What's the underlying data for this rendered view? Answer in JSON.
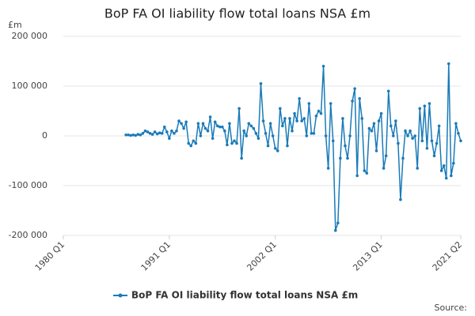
{
  "chart_data": {
    "type": "line",
    "title": "BoP FA OI liability flow total loans NSA £m",
    "y_label": "£m",
    "source": "Source:",
    "categories": [
      "1980 Q1",
      null,
      null,
      null,
      null,
      null,
      null,
      null,
      null,
      null,
      null,
      null,
      null,
      null,
      null,
      null,
      null,
      null,
      null,
      null,
      null,
      null,
      null,
      null,
      null,
      null,
      null,
      null,
      null,
      null,
      null,
      null,
      null,
      null,
      null,
      null,
      null,
      null,
      null,
      null,
      null,
      null,
      null,
      null,
      "1991 Q1",
      null,
      null,
      null,
      null,
      null,
      null,
      null,
      null,
      null,
      null,
      null,
      null,
      null,
      null,
      null,
      null,
      null,
      null,
      null,
      null,
      null,
      null,
      null,
      null,
      null,
      null,
      null,
      null,
      null,
      null,
      null,
      null,
      null,
      null,
      null,
      null,
      null,
      null,
      null,
      null,
      null,
      null,
      null,
      "2002 Q1",
      null,
      null,
      null,
      null,
      null,
      null,
      null,
      null,
      null,
      null,
      null,
      null,
      null,
      null,
      null,
      null,
      null,
      null,
      null,
      null,
      null,
      null,
      null,
      null,
      null,
      null,
      null,
      null,
      null,
      null,
      null,
      null,
      null,
      null,
      null,
      null,
      null,
      null,
      null,
      null,
      null,
      null,
      null,
      "2013 Q1",
      null,
      null,
      null,
      null,
      null,
      null,
      null,
      null,
      null,
      null,
      null,
      null,
      null,
      null,
      null,
      null,
      null,
      null,
      null,
      null,
      null,
      null,
      null,
      null,
      null,
      null,
      null,
      null,
      null,
      null,
      null,
      null,
      "2021 Q2"
    ],
    "series": [
      {
        "name": "BoP FA OI liability flow total loans NSA £m",
        "color": "#1a7bb8",
        "values": [
          null,
          null,
          null,
          null,
          null,
          null,
          null,
          null,
          null,
          null,
          null,
          null,
          null,
          null,
          null,
          null,
          null,
          null,
          null,
          null,
          null,
          null,
          null,
          null,
          null,
          null,
          2000,
          2000,
          1000,
          2000,
          1000,
          3000,
          2000,
          5000,
          10000,
          8000,
          5000,
          3000,
          8000,
          4000,
          6000,
          5000,
          18000,
          8000,
          -5000,
          10000,
          5000,
          10000,
          30000,
          25000,
          15000,
          28000,
          -15000,
          -20000,
          -10000,
          -15000,
          25000,
          0,
          25000,
          15000,
          10000,
          38000,
          -5000,
          28000,
          20000,
          18000,
          18000,
          10000,
          -18000,
          25000,
          -15000,
          -10000,
          -15000,
          55000,
          -45000,
          10000,
          0,
          25000,
          20000,
          15000,
          5000,
          -5000,
          105000,
          30000,
          5000,
          -20000,
          25000,
          0,
          -25000,
          -30000,
          55000,
          20000,
          35000,
          -20000,
          35000,
          10000,
          45000,
          30000,
          75000,
          30000,
          35000,
          0,
          65000,
          5000,
          5000,
          40000,
          50000,
          45000,
          140000,
          0,
          -65000,
          65000,
          -10000,
          -190000,
          -175000,
          -45000,
          35000,
          -20000,
          -45000,
          0,
          70000,
          95000,
          -80000,
          75000,
          35000,
          -70000,
          -75000,
          15000,
          10000,
          25000,
          -30000,
          30000,
          45000,
          -65000,
          -40000,
          90000,
          20000,
          0,
          30000,
          -15000,
          -128000,
          -45000,
          10000,
          0,
          10000,
          -5000,
          0,
          -65000,
          55000,
          -10000,
          60000,
          -25000,
          65000,
          -10000,
          -40000,
          -15000,
          20000,
          -70000,
          -60000,
          -85000,
          145000,
          -80000,
          -55000,
          25000,
          5000,
          -10000
        ]
      }
    ],
    "ylim": [
      -200000,
      200000
    ],
    "yticks": [
      {
        "value": -200000,
        "label": "-200 000"
      },
      {
        "value": -100000,
        "label": "-100 000"
      },
      0,
      {
        "value": 100000,
        "label": "100 000"
      },
      {
        "value": 200000,
        "label": "200 000"
      }
    ],
    "grid": true
  }
}
